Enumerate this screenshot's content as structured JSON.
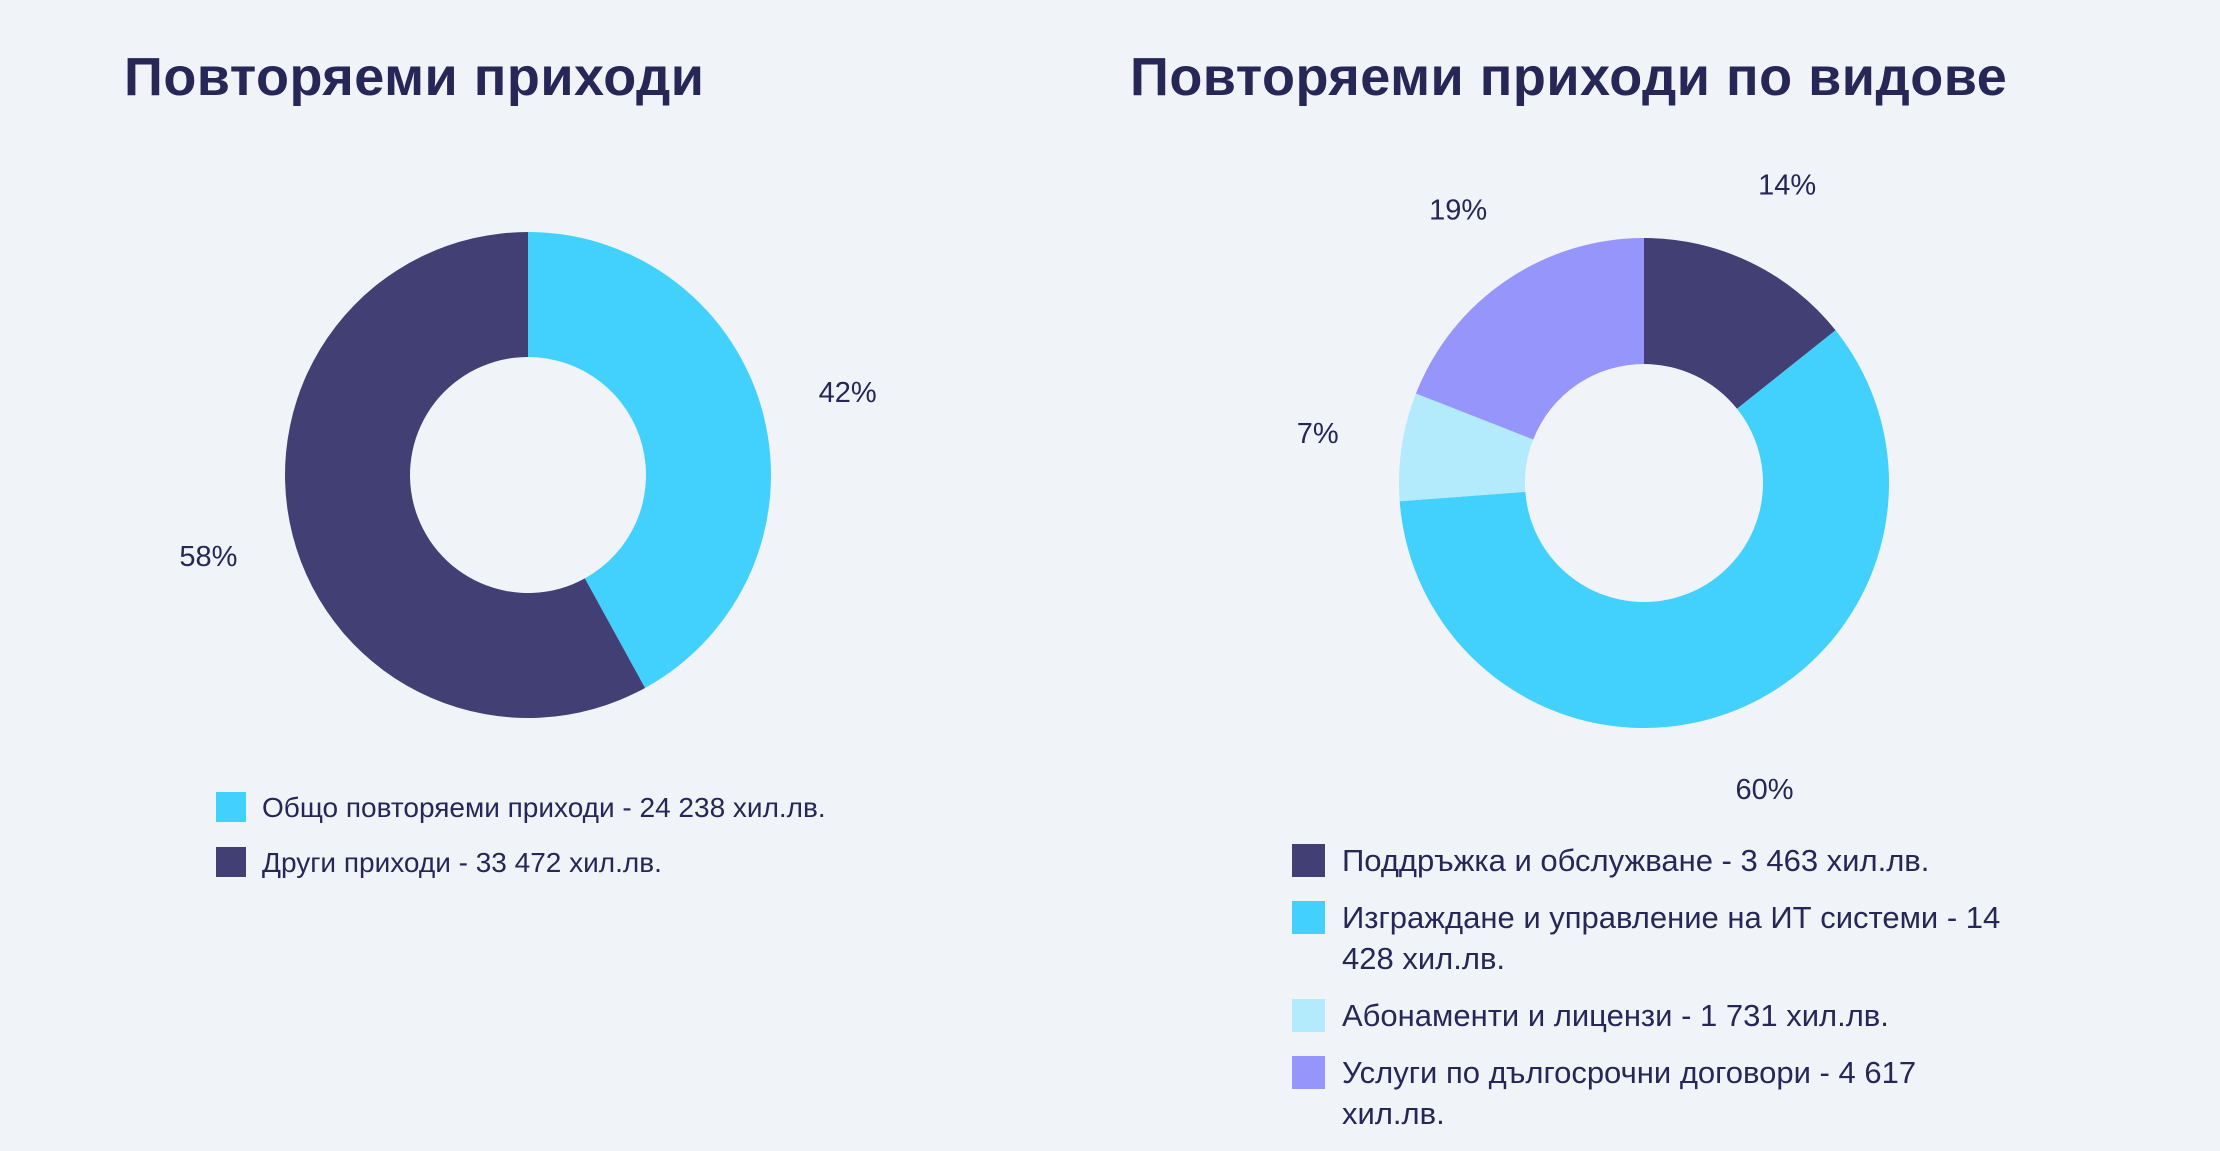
{
  "colors": {
    "background": "#f0f4f9",
    "text": "#262657",
    "dark_navy": "#423f74",
    "cyan": "#42d0fc",
    "light_cyan": "#b3ebfd",
    "lavender": "#9595fb"
  },
  "chart_data": [
    {
      "type": "pie",
      "donut": true,
      "title": "Повторяеми приходи",
      "start": "top",
      "direction": "clockwise",
      "slices": [
        {
          "label": "Общо повторяеми приходи - 24 238 хил.лв.",
          "value": 24238,
          "percent_label": "42%",
          "color": "#42d0fc"
        },
        {
          "label": "Други приходи - 33 472 хил.лв.",
          "value": 33472,
          "percent_label": "58%",
          "color": "#423f74"
        }
      ],
      "legend": "bottom"
    },
    {
      "type": "pie",
      "donut": true,
      "title": "Повторяеми приходи по видове",
      "start": "top",
      "direction": "clockwise",
      "slices": [
        {
          "label": "Поддръжка и обслужване - 3 463 хил.лв.",
          "value": 3463,
          "percent_label": "14%",
          "color": "#423f74"
        },
        {
          "label": "Изграждане и управление на ИТ системи - 14 428 хил.лв.",
          "value": 14428,
          "percent_label": "60%",
          "color": "#42d0fc"
        },
        {
          "label": "Абонаменти и лицензи - 1 731 хил.лв.",
          "value": 1731,
          "percent_label": "7%",
          "color": "#b3ebfd"
        },
        {
          "label": "Услуги по дългосрочни договори - 4 617 хил.лв.",
          "value": 4617,
          "percent_label": "19%",
          "color": "#9595fb"
        }
      ],
      "legend": "bottom"
    }
  ]
}
